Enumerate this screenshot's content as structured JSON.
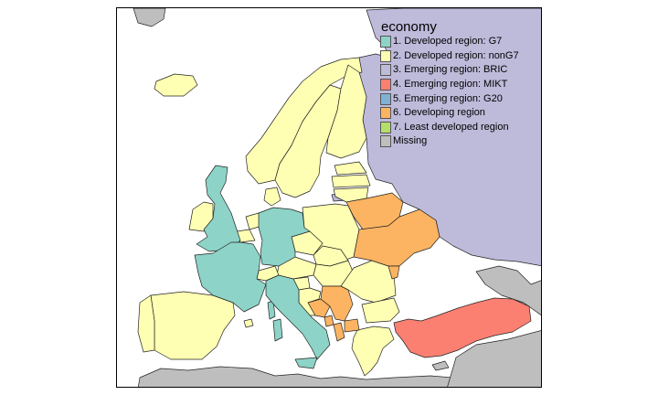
{
  "legend": {
    "title": "economy",
    "items": [
      {
        "label": "1. Developed region: G7",
        "color": "#8dd3c7"
      },
      {
        "label": "2. Developed region: nonG7",
        "color": "#ffffb3"
      },
      {
        "label": "3. Emerging region: BRIC",
        "color": "#bebada"
      },
      {
        "label": "4. Emerging region: MIKT",
        "color": "#fb8072"
      },
      {
        "label": "5. Emerging region: G20",
        "color": "#80b1d3"
      },
      {
        "label": "6. Developing region",
        "color": "#fdb462"
      },
      {
        "label": "7. Least developed region",
        "color": "#b3de69"
      },
      {
        "label": "Missing",
        "color": "#bebebe"
      }
    ]
  },
  "ocean_color": "#ffffff",
  "border_color": "#222222"
}
